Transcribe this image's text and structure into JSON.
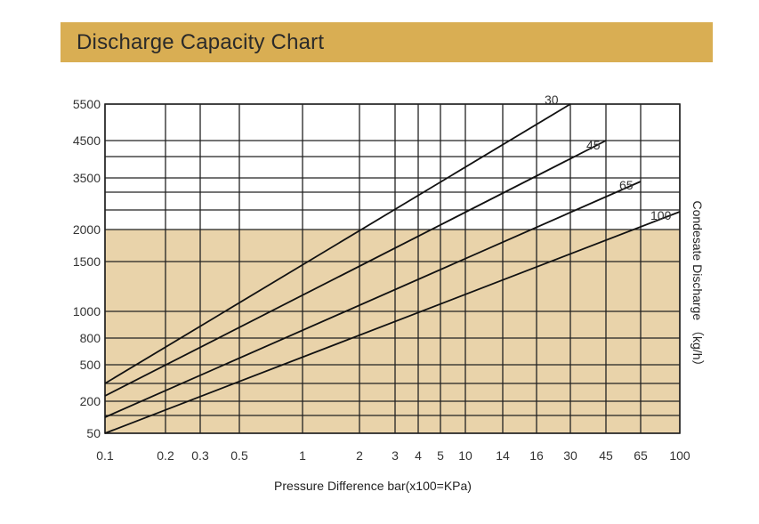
{
  "header": {
    "title": "Discharge Capacity Chart"
  },
  "colors": {
    "banner": "#D9AE53",
    "lower_band": "#E9D3AA",
    "grid": "#222222",
    "curve": "#111111"
  },
  "chart_data": {
    "type": "line",
    "title": "Discharge Capacity Chart",
    "xlabel": "Pressure Difference bar(x100=KPa)",
    "ylabel": "Condesate Discharge （kg/h）",
    "x_scale": "log",
    "x_ticks": [
      "0.1",
      "0.2",
      "0.3",
      "0.5",
      "1",
      "2",
      "3",
      "4",
      "5",
      "10",
      "14",
      "16",
      "30",
      "45",
      "65",
      "100"
    ],
    "y_ticks": [
      "50",
      "200",
      "500",
      "800",
      "1000",
      "1500",
      "2000",
      "3500",
      "4500",
      "5500"
    ],
    "xlim": [
      0.1,
      100
    ],
    "shaded_below": "2000",
    "grid": true,
    "series": [
      {
        "name": "30",
        "x": [
          "0.1",
          "30"
        ],
        "y": [
          "200",
          "5500"
        ]
      },
      {
        "name": "45",
        "x": [
          "0.1",
          "45"
        ],
        "y": [
          "180",
          "4500"
        ]
      },
      {
        "name": "65",
        "x": [
          "0.1",
          "65"
        ],
        "y": [
          "90",
          "3500"
        ]
      },
      {
        "name": "100",
        "x": [
          "0.1",
          "100"
        ],
        "y": [
          "50",
          "2500"
        ]
      }
    ]
  }
}
